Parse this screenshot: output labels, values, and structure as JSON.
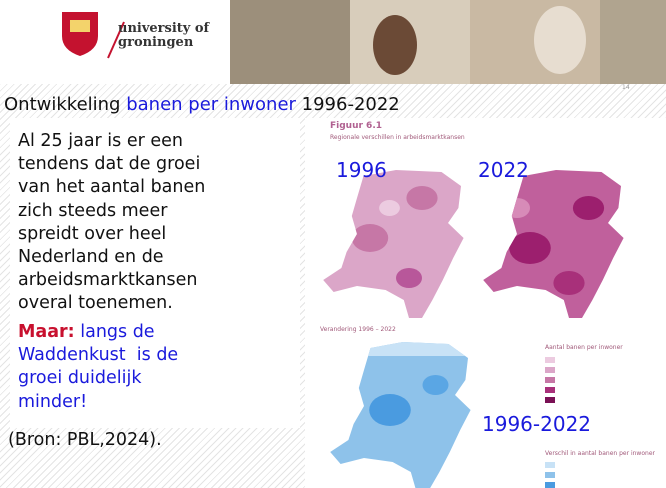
{
  "header": {
    "logo_line1": "university of",
    "logo_line2": "groningen",
    "page_number": "14"
  },
  "title": {
    "prefix": "Ontwikkeling ",
    "highlight": "banen per inwoner",
    "suffix": " 1996-2022"
  },
  "body": {
    "lines": [
      "Al 25 jaar is er een",
      "tendens dat de groei",
      "van het aantal banen",
      "zich steeds meer",
      "spreidt over heel",
      "Nederland en de",
      "arbeidsmarktkansen",
      "overal toenemen."
    ],
    "emphasis": "Maar:",
    "emphasis_lines": [
      " langs de",
      "Waddenkust  is de",
      "groei duidelijk",
      "minder!"
    ],
    "source": "(Bron: PBL,2024)."
  },
  "figure": {
    "caption": "Figuur 6.1",
    "subtitle": "Regionale verschillen in arbeidsmarktkansen",
    "map_labels": [
      "1996",
      "2022",
      "1996-2022"
    ],
    "change_title": "Verandering 1996 – 2022",
    "legend_title": "Aantal banen per inwoner",
    "legend2_title": "Verschil in aantal banen per inwoner"
  }
}
